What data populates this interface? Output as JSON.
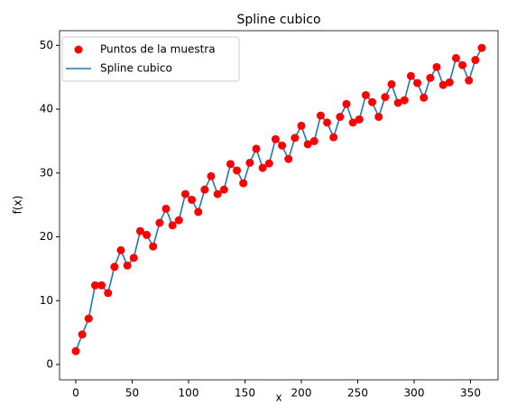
{
  "chart_data": {
    "type": "line",
    "title": "Spline cubico",
    "x_label": "x",
    "y_label": "f(x)",
    "x": [
      0,
      5.71,
      11.43,
      17.14,
      22.86,
      28.57,
      34.29,
      40,
      45.71,
      51.43,
      57.14,
      62.86,
      68.57,
      74.29,
      80,
      85.71,
      91.43,
      97.14,
      102.86,
      108.57,
      114.29,
      120,
      125.71,
      131.43,
      137.14,
      142.86,
      148.57,
      154.29,
      160,
      165.71,
      171.43,
      177.14,
      182.86,
      188.57,
      194.29,
      200,
      205.71,
      211.43,
      217.14,
      222.86,
      228.57,
      234.29,
      240,
      245.71,
      251.43,
      257.14,
      262.86,
      268.57,
      274.29,
      280,
      285.71,
      291.43,
      297.14,
      302.86,
      308.57,
      314.29,
      320,
      325.71,
      331.43,
      337.14,
      342.86,
      348.57,
      354.29,
      360
    ],
    "series": [
      {
        "name": "Puntos de la muestra",
        "color": "#ff0000",
        "mode": "markers",
        "values": [
          2.1,
          4.7,
          7.2,
          12.4,
          12.4,
          11.2,
          15.3,
          17.9,
          15.5,
          16.7,
          20.9,
          20.3,
          18.5,
          22.2,
          24.4,
          21.8,
          22.6,
          26.7,
          25.8,
          23.9,
          27.4,
          29.5,
          26.7,
          27.4,
          31.4,
          30.4,
          28.4,
          31.6,
          33.8,
          30.8,
          31.5,
          35.3,
          34.3,
          32.2,
          35.5,
          37.4,
          34.5,
          35.0,
          39.0,
          37.9,
          35.6,
          38.8,
          40.8,
          37.9,
          38.4,
          42.2,
          41.1,
          38.8,
          41.9,
          43.9,
          41.0,
          41.4,
          45.2,
          44.1,
          41.8,
          44.9,
          46.6,
          43.8,
          44.2,
          48.0,
          46.9,
          44.5,
          47.7,
          49.6
        ]
      },
      {
        "name": "Spline cubico",
        "color": "#1f77b4",
        "mode": "line",
        "values": [
          2.1,
          4.7,
          7.2,
          12.4,
          12.4,
          11.2,
          15.3,
          17.9,
          15.5,
          16.7,
          20.9,
          20.3,
          18.5,
          22.2,
          24.4,
          21.8,
          22.6,
          26.7,
          25.8,
          23.9,
          27.4,
          29.5,
          26.7,
          27.4,
          31.4,
          30.4,
          28.4,
          31.6,
          33.8,
          30.8,
          31.5,
          35.3,
          34.3,
          32.2,
          35.5,
          37.4,
          34.5,
          35.0,
          39.0,
          37.9,
          35.6,
          38.8,
          40.8,
          37.9,
          38.4,
          42.2,
          41.1,
          38.8,
          41.9,
          43.9,
          41.0,
          41.4,
          45.2,
          44.1,
          41.8,
          44.9,
          46.6,
          43.8,
          44.2,
          48.0,
          46.9,
          44.5,
          47.7,
          49.6
        ]
      }
    ],
    "xlim": [
      -14.4,
      374.4
    ],
    "xticks": [
      0,
      50,
      100,
      150,
      200,
      250,
      300,
      350
    ],
    "ylim": [
      -2.4,
      52.3
    ],
    "yticks": [
      0,
      10,
      20,
      30,
      40,
      50
    ],
    "legend": "upper left",
    "grid": false
  }
}
